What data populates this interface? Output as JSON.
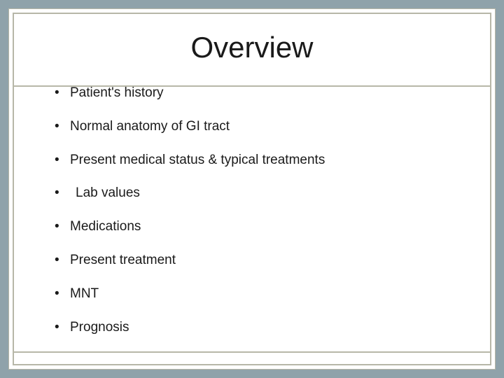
{
  "slide": {
    "title": "Overview",
    "bullets": [
      {
        "text": "Patient's history",
        "indent": false
      },
      {
        "text": "Normal anatomy of GI tract",
        "indent": false
      },
      {
        "text": "Present medical status & typical treatments",
        "indent": false
      },
      {
        "text": "Lab values",
        "indent": true
      },
      {
        "text": "Medications",
        "indent": false
      },
      {
        "text": "Present treatment",
        "indent": false
      },
      {
        "text": "MNT",
        "indent": false
      },
      {
        "text": "Prognosis",
        "indent": false
      }
    ]
  },
  "style": {
    "background_color": "#8fa2aa",
    "frame_border_color": "#b7b7a8",
    "content_background": "#ffffff",
    "title_fontsize": 42,
    "bullet_fontsize": 19,
    "text_color": "#1a1a1a",
    "font_family": "Arial"
  }
}
